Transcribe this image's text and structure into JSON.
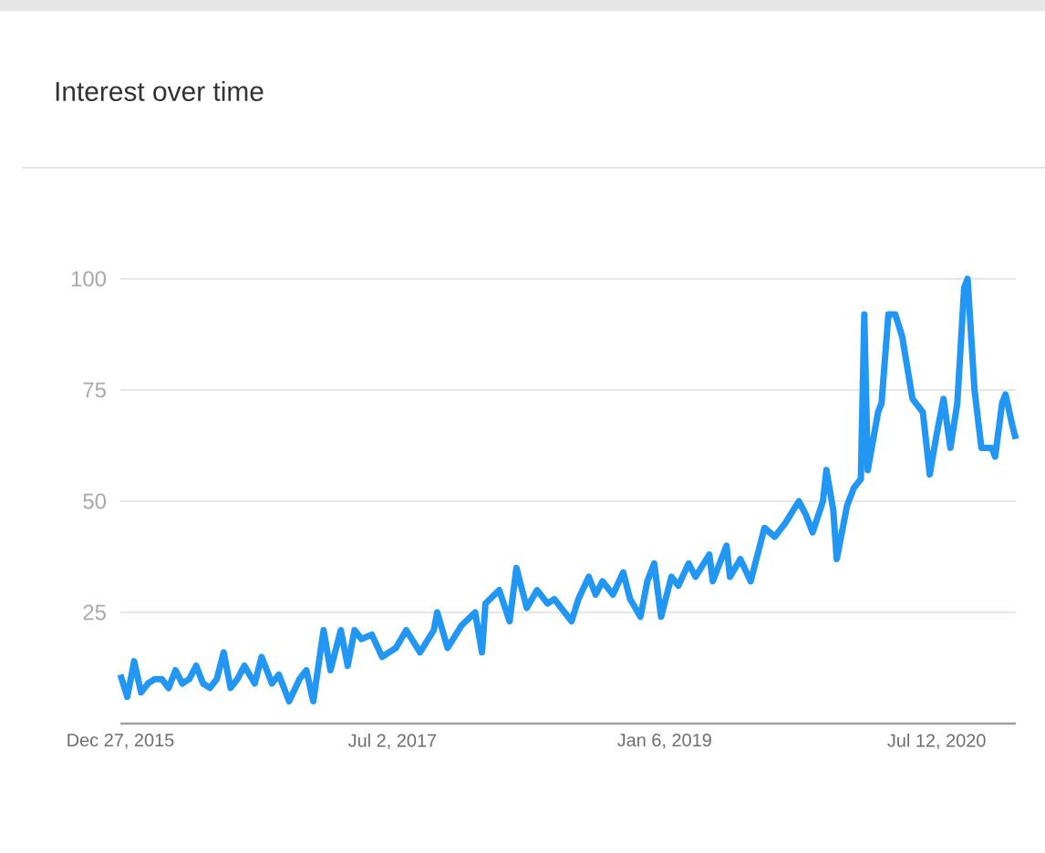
{
  "chart_data": {
    "type": "line",
    "title": "Interest over time",
    "x": [
      "2015-12-27",
      "2016-01-10",
      "2016-01-24",
      "2016-02-07",
      "2016-02-21",
      "2016-03-06",
      "2016-03-20",
      "2016-04-03",
      "2016-04-17",
      "2016-05-01",
      "2016-05-15",
      "2016-05-29",
      "2016-06-12",
      "2016-06-26",
      "2016-07-10",
      "2016-07-24",
      "2016-08-07",
      "2016-08-21",
      "2016-09-04",
      "2016-09-25",
      "2016-10-09",
      "2016-10-30",
      "2016-11-13",
      "2016-12-04",
      "2016-12-25",
      "2017-01-08",
      "2017-01-22",
      "2017-02-12",
      "2017-02-26",
      "2017-03-19",
      "2017-04-02",
      "2017-04-16",
      "2017-04-30",
      "2017-05-21",
      "2017-06-11",
      "2017-07-09",
      "2017-07-30",
      "2017-08-27",
      "2017-09-24",
      "2017-10-01",
      "2017-10-22",
      "2017-11-19",
      "2017-12-17",
      "2017-12-31",
      "2018-01-07",
      "2018-02-04",
      "2018-02-25",
      "2018-03-11",
      "2018-04-01",
      "2018-04-22",
      "2018-05-13",
      "2018-05-27",
      "2018-06-24",
      "2018-07-01",
      "2018-07-15",
      "2018-08-05",
      "2018-08-19",
      "2018-09-02",
      "2018-09-23",
      "2018-10-14",
      "2018-10-28",
      "2018-11-18",
      "2018-12-02",
      "2018-12-16",
      "2018-12-30",
      "2019-01-20",
      "2019-02-03",
      "2019-02-24",
      "2019-03-10",
      "2019-04-07",
      "2019-04-14",
      "2019-05-12",
      "2019-05-19",
      "2019-06-09",
      "2019-06-30",
      "2019-07-14",
      "2019-07-28",
      "2019-08-18",
      "2019-09-08",
      "2019-10-06",
      "2019-10-20",
      "2019-11-03",
      "2019-11-24",
      "2019-12-01",
      "2019-12-15",
      "2019-12-22",
      "2020-01-12",
      "2020-01-26",
      "2020-02-09",
      "2020-02-16",
      "2020-02-23",
      "2020-03-15",
      "2020-03-22",
      "2020-04-05",
      "2020-04-19",
      "2020-05-03",
      "2020-05-24",
      "2020-06-14",
      "2020-06-28",
      "2020-07-12",
      "2020-07-26",
      "2020-08-09",
      "2020-08-23",
      "2020-09-06",
      "2020-09-13",
      "2020-09-27",
      "2020-10-11",
      "2020-11-01",
      "2020-11-08",
      "2020-11-22",
      "2020-11-29",
      "2020-12-13",
      "2020-12-20"
    ],
    "series": [
      {
        "color": "#2196f3",
        "values": [
          11,
          6,
          14,
          7,
          9,
          10,
          10,
          8,
          12,
          9,
          10,
          13,
          9,
          8,
          10,
          16,
          8,
          10,
          13,
          9,
          15,
          9,
          11,
          5,
          10,
          12,
          5,
          21,
          12,
          21,
          13,
          21,
          19,
          20,
          15,
          17,
          21,
          16,
          21,
          25,
          17,
          22,
          25,
          16,
          27,
          30,
          23,
          35,
          26,
          30,
          27,
          28,
          24,
          23,
          28,
          33,
          29,
          32,
          29,
          34,
          28,
          24,
          32,
          36,
          24,
          33,
          31,
          36,
          33,
          38,
          32,
          40,
          33,
          37,
          32,
          38,
          44,
          42,
          45,
          50,
          47,
          43,
          50,
          57,
          48,
          37,
          49,
          53,
          55,
          92,
          57,
          70,
          72,
          92,
          92,
          87,
          73,
          70,
          56,
          65,
          73,
          62,
          72,
          98,
          100,
          75,
          62,
          62,
          60,
          72,
          74,
          67,
          64
        ]
      }
    ],
    "xlim": [
      "2015-12-27",
      "2020-12-20"
    ],
    "xticks": [
      {
        "value": "2015-12-27",
        "label": "Dec 27, 2015"
      },
      {
        "value": "2017-07-02",
        "label": "Jul 2, 2017"
      },
      {
        "value": "2019-01-06",
        "label": "Jan 6, 2019"
      },
      {
        "value": "2020-07-12",
        "label": "Jul 12, 2020"
      }
    ],
    "ylim": [
      0,
      100
    ],
    "yticks": [
      25,
      50,
      75,
      100
    ],
    "grid": "y",
    "marker": "none",
    "line_style": "solid"
  }
}
